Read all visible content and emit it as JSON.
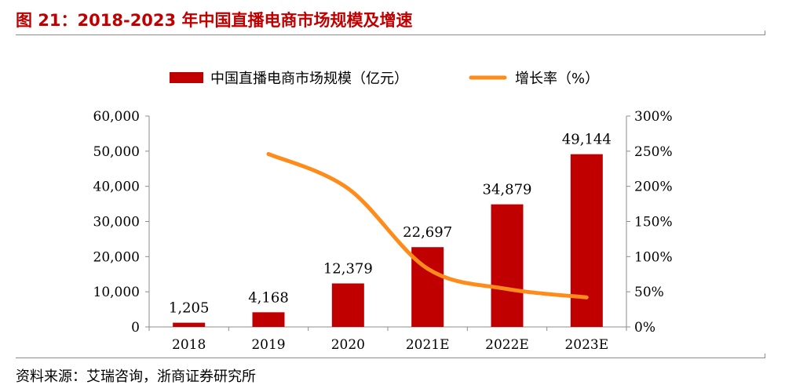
{
  "header": {
    "title": "图 21：2018-2023 年中国直播电商市场规模及增速"
  },
  "footer": {
    "source": "资料来源：艾瑞咨询，浙商证券研究所"
  },
  "colors": {
    "bar": "#c00000",
    "line": "#ff8c1a",
    "title": "#c00000"
  },
  "chart_data": {
    "type": "bar",
    "title": "2018-2023 年中国直播电商市场规模及增速",
    "categories": [
      "2018",
      "2019",
      "2020",
      "2021E",
      "2022E",
      "2023E"
    ],
    "series": [
      {
        "name": "中国直播电商市场规模（亿元）",
        "type": "bar",
        "axis": "left",
        "values": [
          1205,
          4168,
          12379,
          22697,
          34879,
          49144
        ],
        "labels": [
          "1,205",
          "4,168",
          "12,379",
          "22,697",
          "34,879",
          "49,144"
        ]
      },
      {
        "name": "增长率（%）",
        "type": "line",
        "axis": "right",
        "values": [
          null,
          246,
          197,
          83,
          54,
          42
        ]
      }
    ],
    "y_left": {
      "min": 0,
      "max": 60000,
      "ticks": [
        0,
        10000,
        20000,
        30000,
        40000,
        50000,
        60000
      ],
      "tick_labels": [
        "0",
        "10,000",
        "20,000",
        "30,000",
        "40,000",
        "50,000",
        "60,000"
      ]
    },
    "y_right": {
      "min": 0,
      "max": 300,
      "ticks": [
        0,
        50,
        100,
        150,
        200,
        250,
        300
      ],
      "tick_labels": [
        "0%",
        "50%",
        "100%",
        "150%",
        "200%",
        "250%",
        "300%"
      ]
    },
    "grid": false,
    "legend_position": "top"
  }
}
